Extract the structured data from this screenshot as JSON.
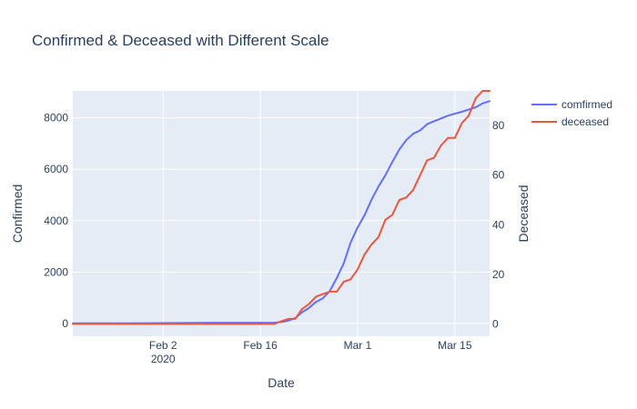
{
  "chart_data": {
    "type": "line",
    "title": "Confirmed & Deceased with Different Scale",
    "xlabel": "Date",
    "ylabel": "Confirmed",
    "y2label": "Deceased",
    "x_start": "2020-01-20",
    "x_range": [
      "2020-01-20",
      "2020-03-20"
    ],
    "x_ticks": [
      {
        "date": "2020-02-02",
        "label": "Feb 2",
        "sublabel": "2020"
      },
      {
        "date": "2020-02-16",
        "label": "Feb 16",
        "sublabel": ""
      },
      {
        "date": "2020-03-01",
        "label": "Mar 1",
        "sublabel": ""
      },
      {
        "date": "2020-03-15",
        "label": "Mar 15",
        "sublabel": ""
      }
    ],
    "ylim": [
      -500,
      9050
    ],
    "y_ticks": [
      0,
      2000,
      4000,
      6000,
      8000
    ],
    "y2lim": [
      -5,
      94
    ],
    "y2_ticks": [
      0,
      20,
      40,
      60,
      80
    ],
    "grid": true,
    "legend_position": "top-right",
    "background": "#e5ecf6",
    "series": [
      {
        "name": "comfirmed",
        "axis": "y",
        "color": "#636efa",
        "x": [
          "2020-01-20",
          "2020-01-25",
          "2020-01-30",
          "2020-02-04",
          "2020-02-09",
          "2020-02-14",
          "2020-02-18",
          "2020-02-19",
          "2020-02-20",
          "2020-02-21",
          "2020-02-22",
          "2020-02-23",
          "2020-02-24",
          "2020-02-25",
          "2020-02-26",
          "2020-02-27",
          "2020-02-28",
          "2020-02-29",
          "2020-03-01",
          "2020-03-02",
          "2020-03-03",
          "2020-03-04",
          "2020-03-05",
          "2020-03-06",
          "2020-03-07",
          "2020-03-08",
          "2020-03-09",
          "2020-03-10",
          "2020-03-11",
          "2020-03-12",
          "2020-03-13",
          "2020-03-14",
          "2020-03-15",
          "2020-03-16",
          "2020-03-17",
          "2020-03-18",
          "2020-03-19",
          "2020-03-20"
        ],
        "y": [
          1,
          4,
          11,
          16,
          27,
          28,
          31,
          51,
          104,
          204,
          433,
          602,
          833,
          977,
          1261,
          1766,
          2337,
          3150,
          3736,
          4212,
          4812,
          5328,
          5766,
          6284,
          6767,
          7134,
          7382,
          7513,
          7755,
          7869,
          7979,
          8086,
          8162,
          8236,
          8320,
          8413,
          8565,
          8652
        ]
      },
      {
        "name": "deceased",
        "axis": "y2",
        "color": "#ef553b",
        "x": [
          "2020-01-20",
          "2020-02-18",
          "2020-02-19",
          "2020-02-20",
          "2020-02-21",
          "2020-02-22",
          "2020-02-23",
          "2020-02-24",
          "2020-02-25",
          "2020-02-26",
          "2020-02-27",
          "2020-02-28",
          "2020-02-29",
          "2020-03-01",
          "2020-03-02",
          "2020-03-03",
          "2020-03-04",
          "2020-03-05",
          "2020-03-06",
          "2020-03-07",
          "2020-03-08",
          "2020-03-09",
          "2020-03-10",
          "2020-03-11",
          "2020-03-12",
          "2020-03-13",
          "2020-03-14",
          "2020-03-15",
          "2020-03-16",
          "2020-03-17",
          "2020-03-18",
          "2020-03-19",
          "2020-03-20"
        ],
        "y": [
          0,
          0,
          1,
          2,
          2,
          6,
          8,
          11,
          12,
          13,
          13,
          17,
          18,
          22,
          28,
          32,
          35,
          42,
          44,
          50,
          51,
          54,
          60,
          66,
          67,
          72,
          75,
          75,
          81,
          84,
          91,
          94,
          94
        ]
      }
    ]
  }
}
